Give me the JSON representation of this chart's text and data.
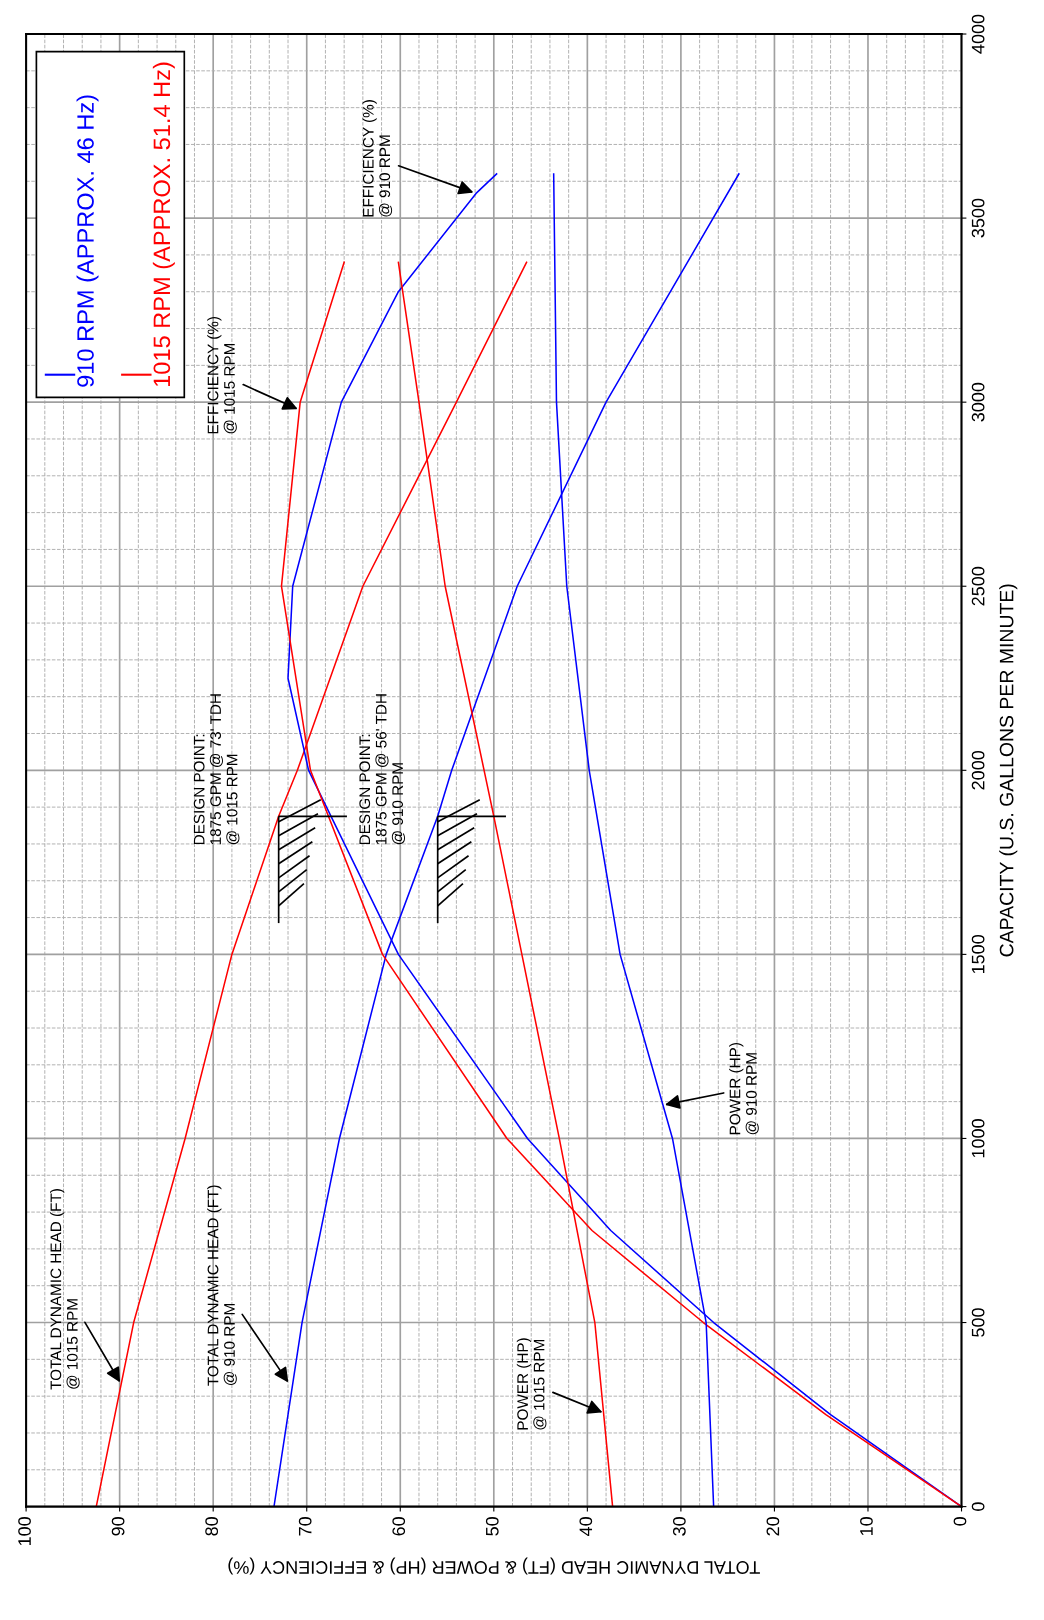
{
  "chart_data": {
    "type": "line",
    "xlabel": "TOTAL DYNAMIC HEAD (FT) & POWER (HP) & EFFICIENCY (%)",
    "ylabel": "CAPACITY (U.S. GALLONS PER MINUTE)",
    "xlim": [
      100,
      0
    ],
    "xticks": [
      0,
      10,
      20,
      30,
      40,
      50,
      60,
      70,
      80,
      90,
      100
    ],
    "ylim": [
      0,
      4000
    ],
    "yticks": [
      0,
      500,
      1000,
      1500,
      2000,
      2500,
      3000,
      3500,
      4000
    ],
    "grid": true,
    "legend": "top left",
    "marker": "none",
    "line_style": "solid",
    "series": [
      {
        "name": "910 RPM (APPROX. 46 Hz)",
        "color": "#0000ff",
        "values": [
          0,
          500,
          1000,
          1500,
          1875,
          2000,
          2500,
          3000,
          3620
        ],
        "x": [
          73.5,
          70.5,
          66.5,
          61.5,
          56,
          54.5,
          47.5,
          38,
          23.8
        ]
      },
      {
        "name": "1015 RPM (APPROX. 51.4 Hz)",
        "color": "#ff0000",
        "values": [
          0,
          500,
          1000,
          1500,
          1875,
          2000,
          2500,
          3000,
          3380
        ],
        "x": [
          92.5,
          88.5,
          83,
          78,
          73,
          71,
          64,
          54,
          46.5
        ]
      },
      {
        "color": "#0000ff",
        "values": [
          0,
          250,
          500,
          750,
          1000,
          1500,
          2000,
          2250,
          2500,
          3000,
          3300,
          3567,
          3620
        ],
        "x": [
          0,
          14,
          26.5,
          37.5,
          46.4,
          60.2,
          69.8,
          72,
          71.5,
          66.3,
          60.2,
          51.9,
          49.7
        ]
      },
      {
        "color": "#ff0000",
        "values": [
          0,
          250,
          500,
          750,
          1000,
          1500,
          2000,
          2500,
          3000,
          3380
        ],
        "x": [
          0,
          14.5,
          27.6,
          39.5,
          48.6,
          61.9,
          69.6,
          72.7,
          70.7,
          66
        ]
      },
      {
        "color": "#0000ff",
        "values": [
          0,
          500,
          1000,
          1500,
          2000,
          2500,
          3000,
          3620
        ],
        "x": [
          26.5,
          27.3,
          30.9,
          36.5,
          39.8,
          42.2,
          43.3,
          43.6
        ]
      },
      {
        "color": "#ff0000",
        "values": [
          0,
          500,
          1000,
          1500,
          1875,
          2500,
          3000,
          3380
        ],
        "x": [
          37.3,
          39.2,
          43,
          47,
          50,
          55.2,
          58,
          60.2
        ]
      }
    ],
    "annotations": [
      {
        "text": "TOTAL DYNAMIC HEAD (FT)\n@ 1015 RPM",
        "y": 331,
        "x": 89.8
      },
      {
        "text": "TOTAL DYNAMIC HEAD (FT)\n@ 910 RPM",
        "y": 331,
        "x": 71.8
      },
      {
        "text": "POWER (HP)\n@ 1015 RPM",
        "y": 253,
        "x": 38.1
      },
      {
        "text": "POWER (HP)\n@ 910 RPM",
        "y": 1090,
        "x": 32
      },
      {
        "text": "EFFICIENCY (%)\n@ 1015 RPM",
        "y": 2978,
        "x": 70.7
      },
      {
        "text": "EFFICIENCY (%)\n@ 910 RPM",
        "y": 3567,
        "x": 51.9
      },
      {
        "text": "DESIGN POINT:\n1875 GPM @ 73' TDH\n@ 1015 RPM",
        "y": 1875,
        "x": 73
      },
      {
        "text": "DESIGN POINT:\n1875 GPM @ 56' TDH\n@ 910 RPM",
        "y": 1875,
        "x": 56
      }
    ]
  }
}
